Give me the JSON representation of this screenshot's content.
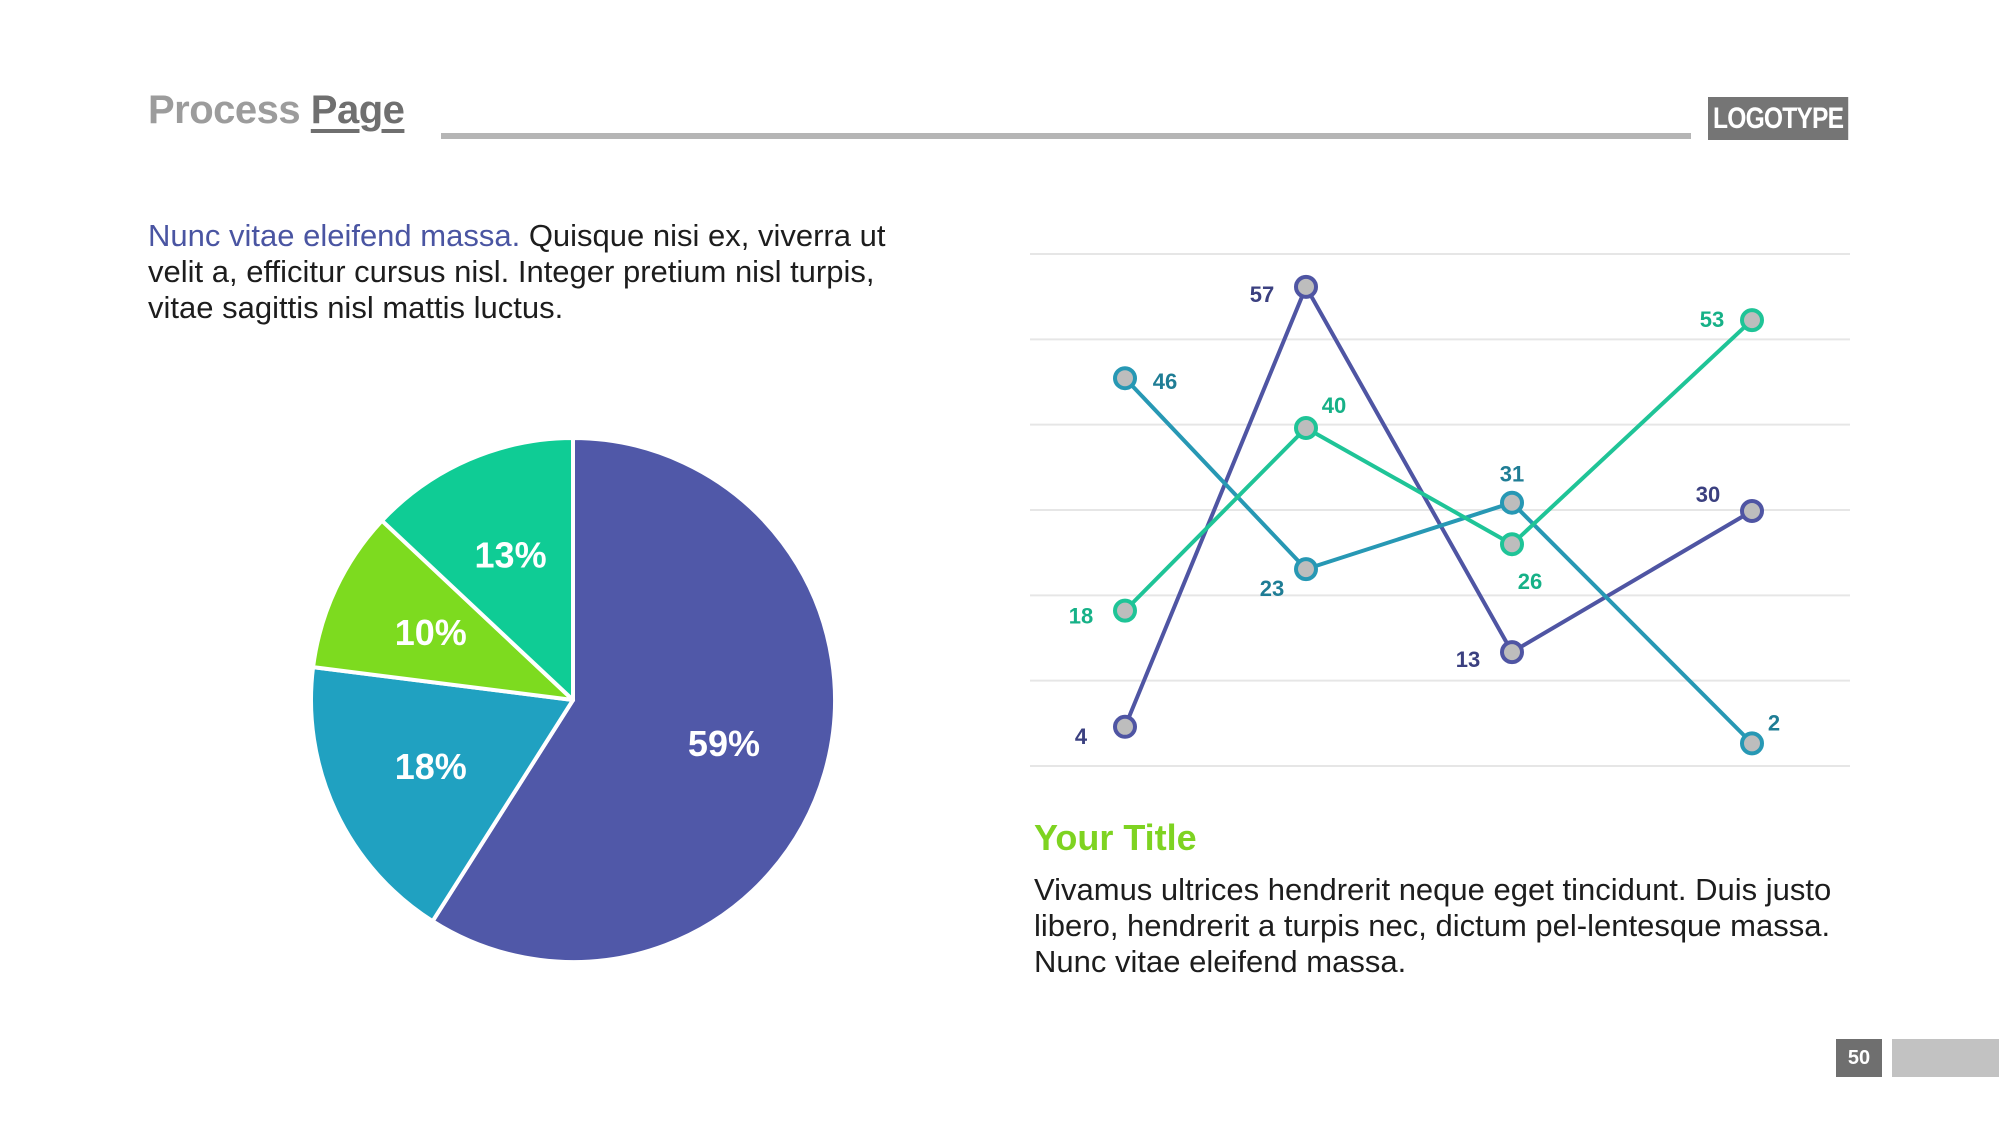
{
  "header": {
    "title_part1": "Process",
    "title_part2": "Page",
    "logo": "LOGOTYPE"
  },
  "intro": {
    "highlight": "Nunc vitae eleifend massa.",
    "rest": " Quisque nisi ex, viverra ut velit a, efficitur cursus nisl. Integer pretium nisl turpis, vitae sagittis nisl mattis luctus."
  },
  "section": {
    "title": "Your Title",
    "text": "Vivamus ultrices hendrerit neque eget tincidunt. Duis justo libero, hendrerit a turpis nec, dictum pel-lentesque massa. Nunc vitae eleifend massa."
  },
  "page_number": "50",
  "colors": {
    "purple": "#5058a8",
    "teal": "#20a1c1",
    "lime": "#7ddb1f",
    "green": "#0fcc95",
    "title_green": "#7ed321"
  },
  "chart_data": [
    {
      "type": "pie",
      "slices": [
        {
          "label": "59%",
          "value": 59,
          "color": "#5058a8"
        },
        {
          "label": "18%",
          "value": 18,
          "color": "#20a1c1"
        },
        {
          "label": "10%",
          "value": 10,
          "color": "#7ddb1f"
        },
        {
          "label": "13%",
          "value": 13,
          "color": "#0fcc95"
        }
      ]
    },
    {
      "type": "line",
      "x": [
        1,
        2,
        3,
        4
      ],
      "ylim": [
        0,
        60
      ],
      "grid": true,
      "series": [
        {
          "values": [
            4,
            57,
            13,
            30
          ],
          "color": "#4f55a3",
          "label_color": "#3b4080"
        },
        {
          "values": [
            46,
            23,
            31,
            2
          ],
          "color": "#2798b4",
          "label_color": "#1f7d95"
        },
        {
          "values": [
            18,
            40,
            26,
            53
          ],
          "color": "#1fc497",
          "label_color": "#16b187"
        }
      ]
    }
  ]
}
